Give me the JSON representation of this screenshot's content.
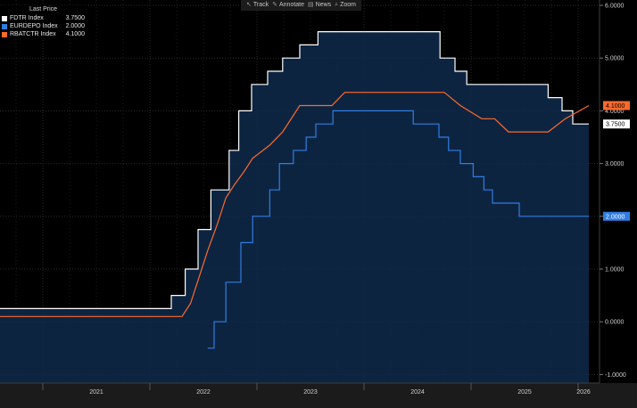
{
  "toolbar": {
    "items": [
      {
        "label": "Track",
        "icon": "cursor-icon"
      },
      {
        "label": "Annotate",
        "icon": "pencil-icon"
      },
      {
        "label": "News",
        "icon": "news-icon"
      },
      {
        "label": "Zoom",
        "icon": "magnifier-icon"
      }
    ]
  },
  "legend": {
    "title": "Last Price",
    "items": [
      {
        "name": "FDTR Index",
        "value": "3.7500",
        "color": "#ffffff"
      },
      {
        "name": "EURDEPO Index",
        "value": "2.0000",
        "color": "#2f7de1"
      },
      {
        "name": "RBATCTR Index",
        "value": "4.1000",
        "color": "#ff6a2b"
      }
    ]
  },
  "chart_data": {
    "type": "line",
    "x_ticks": [
      "2021",
      "2022",
      "2023",
      "2024",
      "2025",
      "2026"
    ],
    "y_ticks": [
      "6.0000",
      "5.0000",
      "4.0000",
      "3.0000",
      "2.0000",
      "1.0000",
      "0.0000",
      "-1.0000"
    ],
    "ylim": [
      -1.0,
      6.0
    ],
    "xlim": [
      2020.6,
      2026.2
    ],
    "grid": true,
    "y_axis_side": "right",
    "last_labels": [
      {
        "series": 2,
        "text": "4.1000",
        "color": "#ff6a2b",
        "text_color": "#000000"
      },
      {
        "series": 0,
        "text": "3.7500",
        "color": "#ffffff",
        "text_color": "#000000"
      },
      {
        "series": 1,
        "text": "2.0000",
        "color": "#2f7de1",
        "text_color": "#ffffff"
      }
    ],
    "series": [
      {
        "name": "FDTR Index",
        "color": "#ffffff",
        "step": true,
        "fill": true,
        "points": [
          [
            2020.6,
            0.25
          ],
          [
            2022.2,
            0.5
          ],
          [
            2022.33,
            1.0
          ],
          [
            2022.45,
            1.75
          ],
          [
            2022.57,
            2.5
          ],
          [
            2022.74,
            3.25
          ],
          [
            2022.83,
            4.0
          ],
          [
            2022.95,
            4.5
          ],
          [
            2023.1,
            4.75
          ],
          [
            2023.24,
            5.0
          ],
          [
            2023.4,
            5.25
          ],
          [
            2023.57,
            5.5
          ],
          [
            2024.71,
            5.0
          ],
          [
            2024.85,
            4.75
          ],
          [
            2024.96,
            4.5
          ],
          [
            2025.72,
            4.25
          ],
          [
            2025.85,
            4.0
          ],
          [
            2025.95,
            3.75
          ],
          [
            2026.1,
            3.75
          ]
        ]
      },
      {
        "name": "EURDEPO Index",
        "color": "#2f7de1",
        "step": true,
        "fill": false,
        "points": [
          [
            2022.54,
            -0.5
          ],
          [
            2022.6,
            0.0
          ],
          [
            2022.71,
            0.75
          ],
          [
            2022.85,
            1.5
          ],
          [
            2022.96,
            2.0
          ],
          [
            2023.12,
            2.5
          ],
          [
            2023.21,
            3.0
          ],
          [
            2023.34,
            3.25
          ],
          [
            2023.46,
            3.5
          ],
          [
            2023.55,
            3.75
          ],
          [
            2023.71,
            4.0
          ],
          [
            2024.46,
            3.75
          ],
          [
            2024.7,
            3.5
          ],
          [
            2024.79,
            3.25
          ],
          [
            2024.9,
            3.0
          ],
          [
            2025.02,
            2.75
          ],
          [
            2025.12,
            2.5
          ],
          [
            2025.2,
            2.25
          ],
          [
            2025.45,
            2.0
          ],
          [
            2026.1,
            2.0
          ]
        ]
      },
      {
        "name": "RBATCTR Index",
        "color": "#ff6a2b",
        "step": false,
        "fill": false,
        "points": [
          [
            2020.6,
            0.1
          ],
          [
            2022.3,
            0.1
          ],
          [
            2022.38,
            0.35
          ],
          [
            2022.46,
            0.85
          ],
          [
            2022.54,
            1.35
          ],
          [
            2022.63,
            1.85
          ],
          [
            2022.71,
            2.35
          ],
          [
            2022.79,
            2.6
          ],
          [
            2022.88,
            2.85
          ],
          [
            2022.96,
            3.1
          ],
          [
            2023.12,
            3.35
          ],
          [
            2023.24,
            3.6
          ],
          [
            2023.4,
            4.1
          ],
          [
            2023.7,
            4.1
          ],
          [
            2023.82,
            4.35
          ],
          [
            2024.75,
            4.35
          ],
          [
            2024.9,
            4.1
          ],
          [
            2025.1,
            3.85
          ],
          [
            2025.22,
            3.85
          ],
          [
            2025.35,
            3.6
          ],
          [
            2025.5,
            3.6
          ],
          [
            2025.72,
            3.6
          ],
          [
            2025.88,
            3.85
          ],
          [
            2026.1,
            4.1
          ]
        ]
      }
    ]
  }
}
